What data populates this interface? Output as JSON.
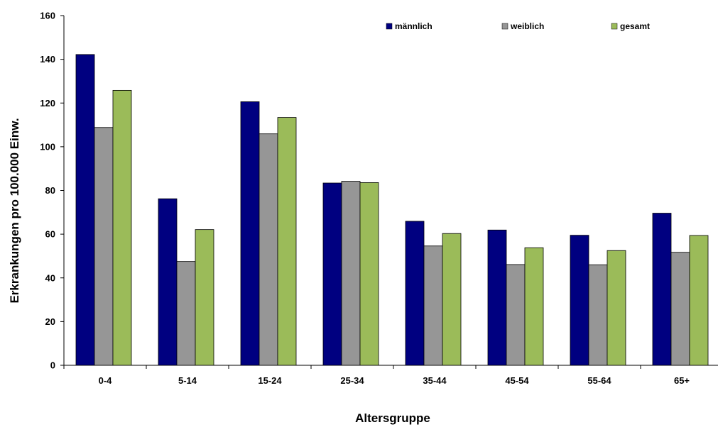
{
  "chart_data": {
    "type": "bar",
    "title": "",
    "xlabel": "Altersgruppe",
    "ylabel": "Erkrankungen pro 100.000 Einw.",
    "ylim": [
      0,
      160
    ],
    "yticks": [
      0,
      20,
      40,
      60,
      80,
      100,
      120,
      140,
      160
    ],
    "categories": [
      "0-4",
      "5-14",
      "15-24",
      "25-34",
      "35-44",
      "45-54",
      "55-64",
      "65+"
    ],
    "series": [
      {
        "name": "männlich",
        "color": "#000080",
        "values": [
          142.2,
          76.2,
          120.6,
          83.4,
          65.9,
          61.9,
          59.5,
          69.6
        ]
      },
      {
        "name": "weiblich",
        "color": "#969696",
        "values": [
          108.8,
          47.5,
          105.9,
          84.2,
          54.6,
          46.1,
          46.0,
          51.7
        ]
      },
      {
        "name": "gesamt",
        "color": "#9BBB59",
        "values": [
          125.8,
          62.1,
          113.4,
          83.6,
          60.3,
          53.8,
          52.5,
          59.4
        ]
      }
    ],
    "legend_position": "top-right",
    "grid": false
  }
}
